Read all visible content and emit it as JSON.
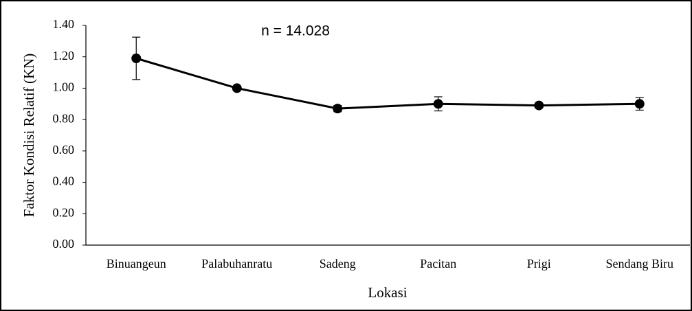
{
  "chart_data": {
    "type": "line",
    "annotation": "n = 14.028",
    "x_label": "Lokasi",
    "y_label": "Faktor Kondisi Relatif (KN)",
    "categories": [
      "Binuangeun",
      "Palabuhanratu",
      "Sadeng",
      "Pacitan",
      "Prigi",
      "Sendang Biru"
    ],
    "values": [
      1.19,
      1.0,
      0.87,
      0.9,
      0.89,
      0.9
    ],
    "errors": [
      0.135,
      0.01,
      0.02,
      0.045,
      0.015,
      0.04
    ],
    "color": "#000000",
    "ylim": [
      0,
      1.4
    ],
    "yticks": [
      {
        "value": 0,
        "label": "0.00"
      },
      {
        "value": 0.2,
        "label": "0.20"
      },
      {
        "value": 0.4,
        "label": "0.40"
      },
      {
        "value": 0.6,
        "label": "0.60"
      },
      {
        "value": 0.8,
        "label": "0.80"
      },
      {
        "value": 1.0,
        "label": "1.00"
      },
      {
        "value": 1.2,
        "label": "1.20"
      },
      {
        "value": 1.4,
        "label": "1.40"
      }
    ]
  }
}
